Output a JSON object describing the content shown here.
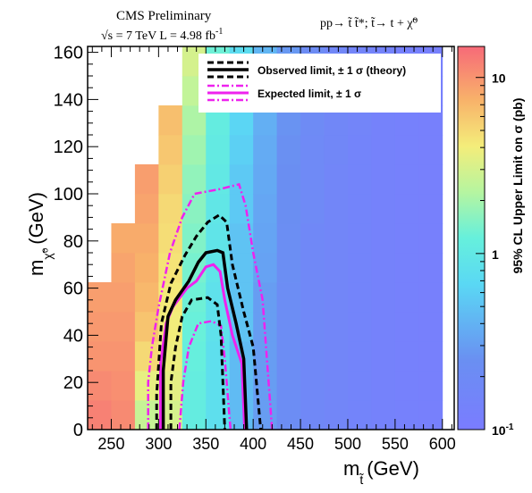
{
  "chart_data": {
    "type": "heatmap",
    "header": {
      "experiment": "CMS Preliminary",
      "lumi_prefix": "√s = 7 TeV   L = 4.98 fb",
      "lumi_exp": "-1",
      "process": "pp→ t̃ t̃*; t̃→ t + χ̃⁰"
    },
    "xlabel": {
      "main": "m",
      "sub": "t̃",
      "unit": "(GeV)"
    },
    "ylabel": {
      "main": "m",
      "sub": "χ̃⁰",
      "unit": "(GeV)"
    },
    "zlabel": "95% CL Upper Limit on σ (pb)",
    "xlim": [
      225,
      612.5
    ],
    "ylim": [
      0,
      162.5
    ],
    "zlim": [
      0.1,
      15
    ],
    "z_log": true,
    "xticks": [
      250,
      300,
      350,
      400,
      450,
      500,
      550,
      600
    ],
    "yticks": [
      0,
      20,
      40,
      60,
      80,
      100,
      120,
      140,
      160
    ],
    "zticks": [
      {
        "value": 0.1,
        "base": "10",
        "exp": "-1"
      },
      {
        "value": 1,
        "base": "1",
        "exp": ""
      },
      {
        "value": 10,
        "base": "10",
        "exp": ""
      }
    ],
    "grid": false,
    "legend_position": "top-right",
    "bin_width": 25,
    "bin_height": 12.5,
    "columns": [
      {
        "x": 237.5,
        "ymax": 62.5,
        "z": [
          12,
          11,
          10,
          9.5,
          9
        ]
      },
      {
        "x": 262.5,
        "ymax": 87.5,
        "z": [
          11,
          10.5,
          10,
          9.5,
          9,
          8.5,
          8
        ]
      },
      {
        "x": 287.5,
        "ymax": 112.5,
        "z": [
          2.6,
          3.6,
          5,
          6.2,
          7,
          7.5,
          8,
          8.5,
          9
        ]
      },
      {
        "x": 312.5,
        "ymax": 137.5,
        "z": [
          3,
          3.5,
          3.8,
          4,
          4.2,
          4.5,
          4.8,
          5,
          5.5,
          6,
          6.5
        ]
      },
      {
        "x": 337.5,
        "ymax": 162.5,
        "z": [
          1.1,
          1.15,
          1.2,
          1.25,
          1.3,
          1.4,
          1.5,
          1.6,
          1.7,
          1.9,
          2.1,
          2.5,
          3
        ]
      },
      {
        "x": 362.5,
        "ymax": 162.5,
        "z": [
          0.8,
          0.8,
          0.8,
          0.85,
          0.85,
          0.9,
          0.9,
          0.95,
          1.0,
          1.05,
          1.1,
          1.2,
          1.3
        ]
      },
      {
        "x": 387.5,
        "ymax": 162.5,
        "z": [
          0.45,
          0.45,
          0.45,
          0.5,
          0.5,
          0.5,
          0.5,
          0.55,
          0.55,
          0.6,
          0.65,
          0.7,
          0.75
        ]
      },
      {
        "x": 412.5,
        "ymax": 162.5,
        "z": [
          0.3,
          0.3,
          0.3,
          0.3,
          0.3,
          0.32,
          0.33,
          0.34,
          0.35,
          0.36,
          0.38,
          0.4,
          0.42
        ]
      },
      {
        "x": 437.5,
        "ymax": 162.5,
        "z": [
          0.22,
          0.22,
          0.22,
          0.22,
          0.22,
          0.23,
          0.23,
          0.24,
          0.24,
          0.25,
          0.26,
          0.27,
          0.28
        ]
      },
      {
        "x": 462.5,
        "ymax": 162.5,
        "z": [
          0.18,
          0.18,
          0.18,
          0.18,
          0.18,
          0.18,
          0.18,
          0.19,
          0.19,
          0.19,
          0.2,
          0.2,
          0.21
        ]
      },
      {
        "x": 487.5,
        "ymax": 162.5,
        "z": [
          0.16,
          0.16,
          0.16,
          0.16,
          0.16,
          0.16,
          0.16,
          0.16,
          0.16,
          0.17,
          0.17,
          0.17,
          0.17
        ]
      },
      {
        "x": 512.5,
        "ymax": 162.5,
        "z": [
          0.145,
          0.145,
          0.145,
          0.145,
          0.145,
          0.145,
          0.145,
          0.145,
          0.145,
          0.145,
          0.15,
          0.15,
          0.15
        ]
      },
      {
        "x": 537.5,
        "ymax": 162.5,
        "z": [
          0.135,
          0.135,
          0.135,
          0.135,
          0.135,
          0.135,
          0.135,
          0.135,
          0.135,
          0.135,
          0.135,
          0.14,
          0.14
        ]
      },
      {
        "x": 562.5,
        "ymax": 162.5,
        "z": [
          0.125,
          0.125,
          0.125,
          0.125,
          0.125,
          0.125,
          0.125,
          0.125,
          0.125,
          0.125,
          0.125,
          0.125,
          0.125
        ]
      },
      {
        "x": 587.5,
        "ymax": 162.5,
        "z": [
          0.12,
          0.12,
          0.12,
          0.12,
          0.12,
          0.12,
          0.12,
          0.12,
          0.12,
          0.12,
          0.12,
          0.12,
          0.12
        ]
      }
    ],
    "series": [
      {
        "name": "Observed limit, ± 1 σ (theory)",
        "label_main": "Observed limit, ",
        "label_pm": "± 1 σ (theory)",
        "color": "#000000",
        "central": [
          [
            305,
            0
          ],
          [
            305,
            25
          ],
          [
            310,
            48
          ],
          [
            318,
            55
          ],
          [
            332,
            63
          ],
          [
            342,
            71
          ],
          [
            350,
            75
          ],
          [
            362,
            76
          ],
          [
            368,
            75
          ],
          [
            373,
            60
          ],
          [
            382,
            45
          ],
          [
            390,
            30
          ],
          [
            393,
            0
          ]
        ],
        "plus": [
          [
            298,
            0
          ],
          [
            298,
            15
          ],
          [
            303,
            45
          ],
          [
            313,
            62
          ],
          [
            328,
            74
          ],
          [
            340,
            82
          ],
          [
            352,
            88
          ],
          [
            364,
            91
          ],
          [
            372,
            88
          ],
          [
            378,
            70
          ],
          [
            390,
            50
          ],
          [
            400,
            35
          ],
          [
            408,
            0
          ]
        ],
        "minus": [
          [
            313,
            0
          ],
          [
            313,
            20
          ],
          [
            318,
            35
          ],
          [
            325,
            48
          ],
          [
            335,
            55
          ],
          [
            352,
            56
          ],
          [
            362,
            53
          ],
          [
            366,
            40
          ],
          [
            370,
            0
          ]
        ]
      },
      {
        "name": "Expected limit, ± 1 σ",
        "label_main": "Expected limit, ",
        "label_pm": "± 1 σ",
        "color": "#ee22ee",
        "central": [
          [
            302,
            0
          ],
          [
            302,
            28
          ],
          [
            308,
            45
          ],
          [
            315,
            52
          ],
          [
            330,
            60
          ],
          [
            340,
            63
          ],
          [
            350,
            69
          ],
          [
            358,
            70
          ],
          [
            365,
            67
          ],
          [
            370,
            55
          ],
          [
            378,
            40
          ],
          [
            388,
            28
          ],
          [
            391,
            0
          ]
        ],
        "plus": [
          [
            289,
            0
          ],
          [
            289,
            20
          ],
          [
            293,
            35
          ],
          [
            300,
            52
          ],
          [
            312,
            75
          ],
          [
            325,
            90
          ],
          [
            338,
            100
          ],
          [
            365,
            102
          ],
          [
            385,
            104
          ],
          [
            392,
            95
          ],
          [
            400,
            75
          ],
          [
            410,
            55
          ],
          [
            420,
            0
          ]
        ],
        "minus": [
          [
            322,
            0
          ],
          [
            326,
            20
          ],
          [
            332,
            35
          ],
          [
            342,
            45
          ],
          [
            356,
            46
          ],
          [
            366,
            44
          ],
          [
            370,
            30
          ],
          [
            376,
            0
          ]
        ]
      }
    ]
  }
}
